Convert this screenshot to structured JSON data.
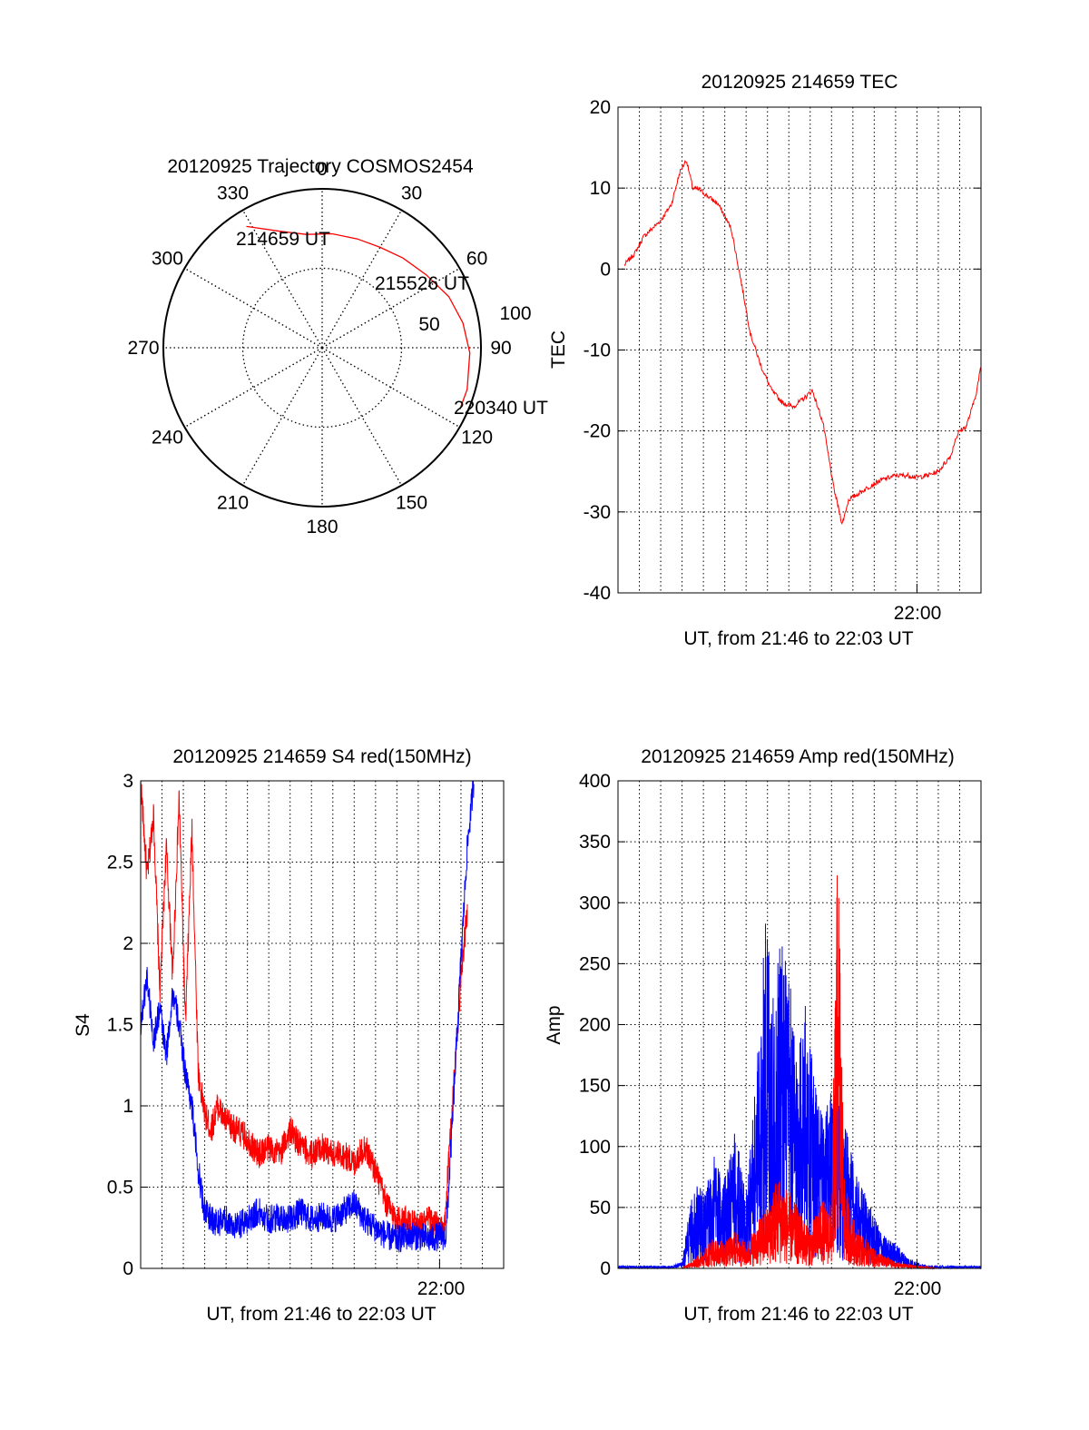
{
  "colors": {
    "red": "#ff0000",
    "blue": "#0000ff",
    "grid": "#000000"
  },
  "chart_data": [
    {
      "id": "trajectory",
      "type": "polar",
      "title": "20120925 Trajectory COSMOS2454",
      "azimuth_labels": [
        "0",
        "30",
        "60",
        "90",
        "120",
        "150",
        "180",
        "210",
        "240",
        "270",
        "300",
        "330"
      ],
      "radial_labels": [
        {
          "value": 50,
          "label": "50"
        },
        {
          "value": 100,
          "label": "100"
        }
      ],
      "r_max": 100,
      "track": {
        "color": "red",
        "points": [
          {
            "az": 328,
            "r": 90
          },
          {
            "az": 340,
            "r": 78
          },
          {
            "az": 352,
            "r": 72
          },
          {
            "az": 5,
            "r": 72
          },
          {
            "az": 18,
            "r": 72
          },
          {
            "az": 30,
            "r": 73
          },
          {
            "az": 42,
            "r": 76
          },
          {
            "az": 55,
            "r": 80
          },
          {
            "az": 68,
            "r": 86
          },
          {
            "az": 80,
            "r": 90
          },
          {
            "az": 92,
            "r": 93
          },
          {
            "az": 106,
            "r": 95
          },
          {
            "az": 114,
            "r": 95
          }
        ]
      },
      "annotations": [
        {
          "label": "214659 UT",
          "az": 328,
          "r": 90
        },
        {
          "label": "215526 UT",
          "az": 55,
          "r": 80
        },
        {
          "label": "220340 UT",
          "az": 114,
          "r": 95
        }
      ]
    },
    {
      "id": "tec",
      "type": "line",
      "title": "20120925 214659 TEC",
      "ylabel": "TEC",
      "xlabel": "UT, from 21:46 to 22:03 UT",
      "xtick_label": "22:00",
      "xtick_value": 14,
      "xlim": [
        0,
        17
      ],
      "ylim": [
        -40,
        20
      ],
      "yticks": [
        20,
        10,
        0,
        -10,
        -20,
        -30,
        -40
      ],
      "series": [
        {
          "color": "red",
          "x": [
            0.3,
            0.8,
            1.2,
            1.6,
            2.0,
            2.5,
            2.9,
            3.2,
            3.5,
            3.8,
            4.2,
            4.7,
            5.3,
            5.8,
            6.2,
            6.7,
            7.2,
            7.7,
            8.2,
            8.7,
            9.1,
            9.6,
            10.1,
            10.5,
            10.8,
            11.1,
            11.4,
            11.7,
            12.0,
            12.4,
            13.0,
            13.6,
            14.0,
            14.5,
            15.0,
            15.3,
            15.6,
            15.8,
            16.0,
            16.3,
            16.6,
            16.8,
            17.0
          ],
          "y": [
            0.5,
            2.0,
            4.0,
            5.0,
            6.0,
            8.0,
            12.0,
            13.5,
            10.0,
            9.8,
            9.0,
            8.0,
            5.0,
            -2.0,
            -8.0,
            -12.0,
            -15.0,
            -16.5,
            -17.0,
            -16.0,
            -15.0,
            -19.0,
            -27.0,
            -31.5,
            -28.5,
            -28.0,
            -27.5,
            -27.0,
            -26.5,
            -26.0,
            -25.5,
            -25.5,
            -25.7,
            -25.5,
            -25.0,
            -24.0,
            -23.0,
            -21.0,
            -20.0,
            -19.5,
            -17.0,
            -15.0,
            -12.0
          ]
        }
      ]
    },
    {
      "id": "s4",
      "type": "line",
      "title": "20120925 214659 S4 red(150MHz)",
      "ylabel": "S4",
      "xlabel": "UT, from 21:46 to 22:03 UT",
      "xtick_label": "22:00",
      "xtick_value": 14,
      "xlim": [
        0,
        17
      ],
      "ylim": [
        0,
        3
      ],
      "yticks": [
        3,
        2.5,
        2,
        1.5,
        1,
        0.5,
        0
      ],
      "series": [
        {
          "color": "red",
          "x": [
            0,
            0.3,
            0.6,
            0.9,
            1.2,
            1.5,
            1.8,
            2.1,
            2.4,
            2.7,
            3.0,
            3.3,
            3.6,
            4.0,
            4.5,
            5.0,
            5.5,
            6.0,
            6.5,
            7.0,
            7.5,
            8.0,
            8.5,
            9.0,
            9.5,
            10.0,
            10.5,
            11.0,
            11.5,
            12.0,
            12.5,
            13.0,
            13.5,
            14.0,
            14.2,
            14.6,
            15.0,
            15.3
          ],
          "y": [
            3.0,
            2.4,
            2.8,
            1.7,
            2.6,
            1.8,
            2.9,
            1.5,
            2.7,
            1.2,
            0.95,
            0.85,
            1.0,
            0.9,
            0.85,
            0.8,
            0.7,
            0.75,
            0.7,
            0.85,
            0.75,
            0.7,
            0.75,
            0.7,
            0.7,
            0.65,
            0.75,
            0.6,
            0.4,
            0.3,
            0.3,
            0.25,
            0.3,
            0.25,
            0.2,
            1.0,
            1.8,
            2.2
          ]
        },
        {
          "color": "blue",
          "x": [
            0,
            0.3,
            0.6,
            0.9,
            1.2,
            1.5,
            1.8,
            2.1,
            2.4,
            2.7,
            3.0,
            3.3,
            3.6,
            4.0,
            4.5,
            5.0,
            5.5,
            6.0,
            6.5,
            7.0,
            7.5,
            8.0,
            8.5,
            9.0,
            9.5,
            10.0,
            10.5,
            11.0,
            11.5,
            12.0,
            12.5,
            13.0,
            13.5,
            14.0,
            14.3,
            14.6,
            15.0,
            15.3,
            15.6
          ],
          "y": [
            1.5,
            1.8,
            1.4,
            1.6,
            1.3,
            1.7,
            1.5,
            1.2,
            1.0,
            0.6,
            0.35,
            0.3,
            0.28,
            0.3,
            0.25,
            0.3,
            0.35,
            0.3,
            0.32,
            0.3,
            0.35,
            0.3,
            0.32,
            0.3,
            0.35,
            0.4,
            0.3,
            0.25,
            0.2,
            0.18,
            0.2,
            0.2,
            0.18,
            0.2,
            0.2,
            0.9,
            1.9,
            2.6,
            3.0
          ]
        }
      ]
    },
    {
      "id": "amp",
      "type": "line",
      "title": "20120925 214659 Amp red(150MHz)",
      "ylabel": "Amp",
      "xlabel": "UT, from 21:46 to 22:03 UT",
      "xtick_label": "22:00",
      "xtick_value": 14,
      "xlim": [
        0,
        17
      ],
      "ylim": [
        0,
        400
      ],
      "yticks": [
        400,
        350,
        300,
        250,
        200,
        150,
        100,
        50,
        0
      ],
      "series": [
        {
          "color": "blue",
          "x": [
            0,
            2.5,
            3.0,
            3.3,
            3.6,
            4.0,
            4.5,
            5.0,
            5.5,
            6.0,
            6.5,
            7.0,
            7.3,
            7.6,
            8.0,
            8.4,
            8.8,
            9.2,
            9.6,
            10.0,
            10.4,
            10.8,
            11.2,
            11.6,
            12.0,
            12.5,
            13.0,
            13.5,
            14.0,
            14.5,
            15.0,
            17.0
          ],
          "y": [
            2,
            2,
            5,
            40,
            70,
            60,
            90,
            70,
            110,
            60,
            160,
            300,
            200,
            280,
            230,
            180,
            210,
            150,
            120,
            140,
            130,
            100,
            70,
            60,
            40,
            25,
            20,
            10,
            5,
            2,
            2,
            2
          ]
        },
        {
          "color": "red",
          "x": [
            0,
            3.0,
            3.4,
            4.0,
            4.5,
            5.0,
            5.5,
            6.0,
            6.5,
            7.0,
            7.5,
            8.0,
            8.5,
            9.0,
            9.5,
            10.0,
            10.3,
            10.6,
            11.0,
            11.5,
            12.0,
            12.5,
            13.0,
            14.0,
            15.0,
            17.0
          ],
          "y": [
            0,
            0,
            5,
            15,
            25,
            20,
            30,
            20,
            35,
            50,
            75,
            60,
            45,
            30,
            55,
            50,
            350,
            70,
            40,
            25,
            15,
            10,
            5,
            2,
            0,
            0
          ]
        }
      ]
    }
  ]
}
